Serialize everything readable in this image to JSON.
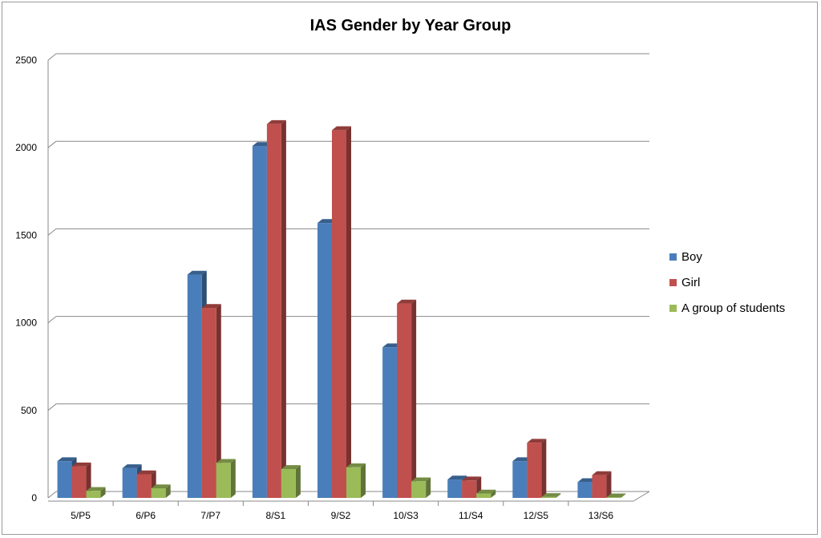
{
  "chart_data": {
    "type": "bar",
    "title": "IAS Gender by Year Group",
    "xlabel": "",
    "ylabel": "",
    "ylim": [
      0,
      2500
    ],
    "yticks": [
      "0",
      "500",
      "1000",
      "1500",
      "2000",
      "2500"
    ],
    "grid": true,
    "legend_position": "right",
    "categories": [
      "5/P5",
      "6/P6",
      "7/P7",
      "8/S1",
      "9/S2",
      "10/S3",
      "11/S4",
      "12/S5",
      "13/S6"
    ],
    "series": [
      {
        "name": "Boy",
        "color": "#4a7ebb",
        "values": [
          210,
          170,
          1275,
          2010,
          1570,
          860,
          105,
          210,
          90
        ]
      },
      {
        "name": "Girl",
        "color": "#c0504d",
        "values": [
          180,
          135,
          1085,
          2135,
          2100,
          1110,
          100,
          315,
          130
        ]
      },
      {
        "name": "A group of students",
        "color": "#9bbb59",
        "values": [
          40,
          55,
          200,
          165,
          175,
          95,
          25,
          5,
          3
        ]
      }
    ]
  }
}
